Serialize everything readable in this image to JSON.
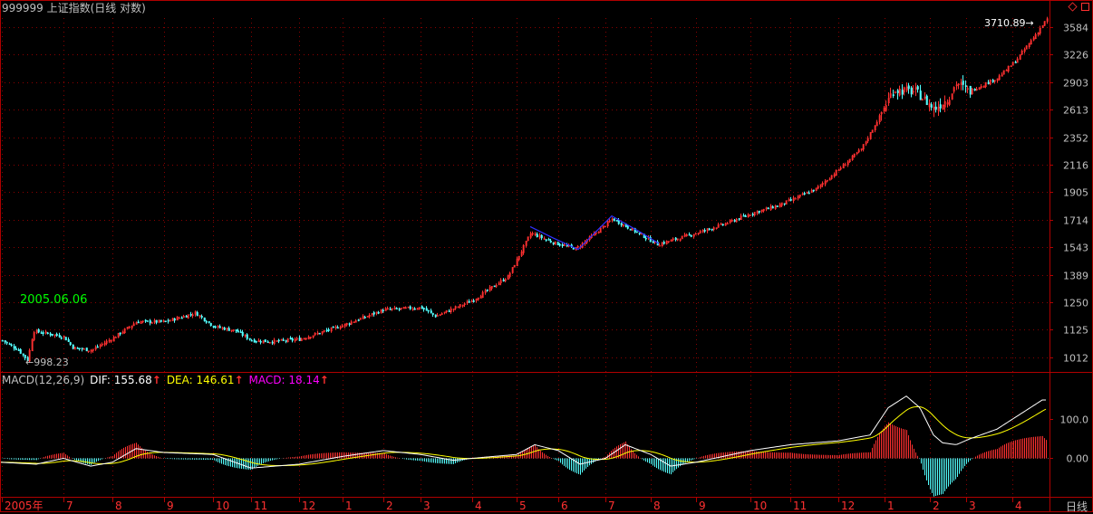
{
  "title": "999999 上证指数(日线 对数)",
  "chart_data": {
    "type": "candlestick",
    "y_scale": "log",
    "yticks": [
      "3584",
      "3226",
      "2903",
      "2613",
      "2352",
      "2116",
      "1905",
      "1714",
      "1543",
      "1389",
      "1250",
      "1125",
      "1012"
    ],
    "x_labels": [
      "2005年",
      "7",
      "8",
      "9",
      "10",
      "11",
      "12",
      "1",
      "2",
      "3",
      "4",
      "5",
      "6",
      "7",
      "8",
      "9",
      "10",
      "11",
      "12",
      "1",
      "2",
      "3",
      "4"
    ],
    "annotations": {
      "low_label": "998.23",
      "low_date": "2005.06.06",
      "high_label": "3710.89"
    },
    "macd": {
      "name": "MACD(12,26,9)",
      "dif_label": "DIF: 155.68",
      "dea_label": "DEA: 146.61",
      "macd_label": "MACD: 18.14",
      "yticks": [
        "100.0",
        "0.00"
      ],
      "dif_value": 155.68,
      "dea_value": 146.61,
      "macd_value": 18.14
    }
  },
  "period_label": "日线",
  "colors": {
    "up": "#ff3030",
    "down": "#54ffff",
    "dif": "#ffffff",
    "dea": "#ffff00",
    "macd": "#ff00ff",
    "grid": "#8b0000",
    "axis": "#b00000",
    "date_label": "#00ff00"
  },
  "icons": [
    "diamond-icon",
    "restore-icon"
  ]
}
